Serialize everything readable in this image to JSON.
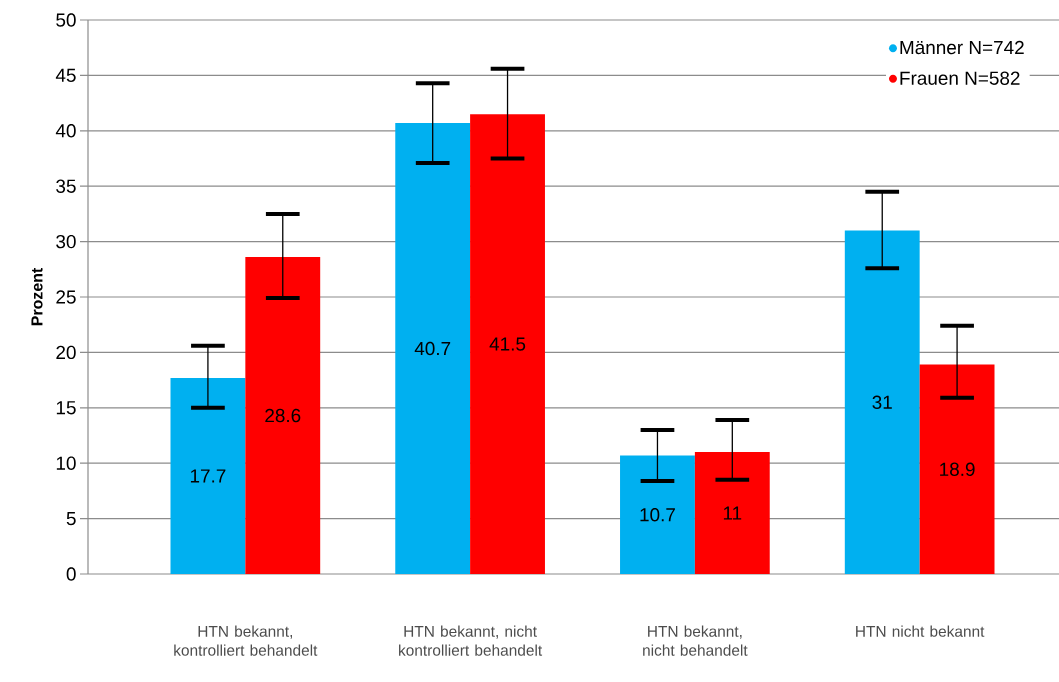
{
  "chart_data": {
    "type": "bar",
    "ylabel": "Prozent",
    "categories": [
      "HTN bekannt, kontrolliert behandelt",
      "HTN bekannt, nicht kontrolliert behandelt",
      "HTN bekannt, nicht behandelt",
      "HTN nicht bekannt"
    ],
    "series": [
      {
        "name": "Männer N=742",
        "color": "#00b0f0",
        "values": [
          17.7,
          40.7,
          10.7,
          31
        ],
        "errors": [
          [
            15.0,
            20.6
          ],
          [
            37.1,
            44.3
          ],
          [
            8.4,
            13.0
          ],
          [
            27.6,
            34.5
          ]
        ]
      },
      {
        "name": "Frauen N=582",
        "color": "#ff0000",
        "values": [
          28.6,
          41.5,
          11,
          18.9
        ],
        "errors": [
          [
            24.9,
            32.5
          ],
          [
            37.5,
            45.6
          ],
          [
            8.5,
            13.9
          ],
          [
            15.9,
            22.4
          ]
        ]
      }
    ],
    "ylim": [
      0,
      50
    ],
    "yticks": [
      0,
      5,
      10,
      15,
      20,
      25,
      30,
      35,
      40,
      45,
      50
    ],
    "grid": "y",
    "legend": "top right",
    "data_labels": true
  }
}
